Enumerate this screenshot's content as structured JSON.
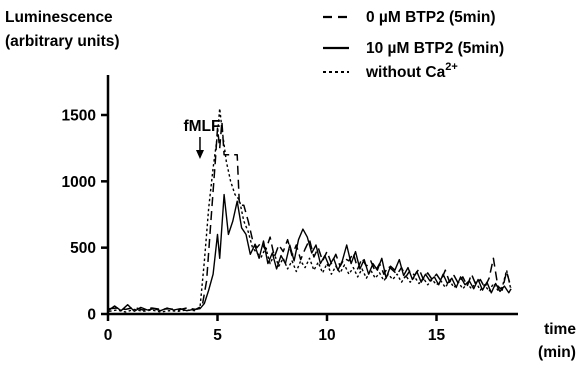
{
  "chart_data": {
    "type": "line",
    "ylabel_line1": "Luminescence",
    "ylabel_line2": "(arbitrary units)",
    "xlabel_line1": "time",
    "xlabel_line2": "(min)",
    "xlim": [
      0,
      19
    ],
    "ylim": [
      0,
      1700
    ],
    "xticks": [
      0,
      5,
      10,
      15
    ],
    "xtick_labels": [
      "0",
      "5",
      "10",
      "15"
    ],
    "yticks": [
      0,
      500,
      1000,
      1500
    ],
    "ytick_labels": [
      "0",
      "500",
      "1000",
      "1500"
    ],
    "annotation": {
      "text": "fMLF",
      "x": 4.2
    },
    "legend": {
      "position": "top-right",
      "entries": [
        {
          "style": "dashed",
          "text": "0 µM BTP2 (5min)"
        },
        {
          "style": "solid",
          "text": "10 µM BTP2 (5min)"
        },
        {
          "style": "dotted",
          "text_main": "without Ca",
          "text_sup": "2+"
        }
      ]
    },
    "series": [
      {
        "style": "dashed",
        "points": [
          [
            0.05,
            40
          ],
          [
            0.4,
            45
          ],
          [
            0.8,
            35
          ],
          [
            1.2,
            50
          ],
          [
            1.6,
            30
          ],
          [
            2.0,
            45
          ],
          [
            2.4,
            35
          ],
          [
            2.8,
            40
          ],
          [
            3.2,
            30
          ],
          [
            3.6,
            45
          ],
          [
            4.0,
            35
          ],
          [
            4.3,
            60
          ],
          [
            4.5,
            250
          ],
          [
            4.7,
            700
          ],
          [
            4.9,
            1150
          ],
          [
            5.0,
            1400
          ],
          [
            5.1,
            1250
          ],
          [
            5.2,
            1450
          ],
          [
            5.3,
            1200
          ],
          [
            5.5,
            1200
          ],
          [
            5.7,
            1200
          ],
          [
            5.9,
            1200
          ],
          [
            6.0,
            820
          ],
          [
            6.2,
            820
          ],
          [
            6.4,
            700
          ],
          [
            6.6,
            560
          ],
          [
            6.8,
            500
          ],
          [
            7.0,
            540
          ],
          [
            7.2,
            480
          ],
          [
            7.4,
            580
          ],
          [
            7.6,
            430
          ],
          [
            7.8,
            520
          ],
          [
            8.0,
            470
          ],
          [
            8.2,
            560
          ],
          [
            8.4,
            440
          ],
          [
            8.6,
            520
          ],
          [
            8.8,
            410
          ],
          [
            9.0,
            490
          ],
          [
            9.2,
            560
          ],
          [
            9.4,
            430
          ],
          [
            9.6,
            500
          ],
          [
            9.8,
            400
          ],
          [
            10.0,
            470
          ],
          [
            10.2,
            380
          ],
          [
            10.4,
            450
          ],
          [
            10.6,
            360
          ],
          [
            10.8,
            420
          ],
          [
            11.0,
            400
          ],
          [
            11.2,
            460
          ],
          [
            11.4,
            340
          ],
          [
            11.6,
            420
          ],
          [
            11.8,
            360
          ],
          [
            12.0,
            400
          ],
          [
            12.2,
            320
          ],
          [
            12.4,
            380
          ],
          [
            12.6,
            300
          ],
          [
            12.8,
            360
          ],
          [
            13.0,
            330
          ],
          [
            13.2,
            300
          ],
          [
            13.4,
            350
          ],
          [
            13.6,
            280
          ],
          [
            13.8,
            330
          ],
          [
            14.0,
            290
          ],
          [
            14.2,
            340
          ],
          [
            14.4,
            260
          ],
          [
            14.6,
            310
          ],
          [
            14.8,
            260
          ],
          [
            15.0,
            300
          ],
          [
            15.2,
            250
          ],
          [
            15.4,
            330
          ],
          [
            15.6,
            240
          ],
          [
            15.8,
            290
          ],
          [
            16.0,
            230
          ],
          [
            16.2,
            280
          ],
          [
            16.4,
            210
          ],
          [
            16.6,
            300
          ],
          [
            16.8,
            220
          ],
          [
            17.0,
            260
          ],
          [
            17.2,
            200
          ],
          [
            17.4,
            270
          ],
          [
            17.6,
            420
          ],
          [
            17.8,
            210
          ],
          [
            18.0,
            180
          ],
          [
            18.2,
            320
          ],
          [
            18.4,
            200
          ]
        ]
      },
      {
        "style": "solid",
        "points": [
          [
            0.05,
            30
          ],
          [
            0.3,
            60
          ],
          [
            0.6,
            25
          ],
          [
            0.9,
            70
          ],
          [
            1.2,
            20
          ],
          [
            1.5,
            50
          ],
          [
            1.8,
            30
          ],
          [
            2.1,
            40
          ],
          [
            2.4,
            25
          ],
          [
            2.7,
            45
          ],
          [
            3.0,
            30
          ],
          [
            3.3,
            40
          ],
          [
            3.6,
            25
          ],
          [
            3.9,
            35
          ],
          [
            4.2,
            40
          ],
          [
            4.4,
            80
          ],
          [
            4.6,
            180
          ],
          [
            4.8,
            300
          ],
          [
            5.0,
            600
          ],
          [
            5.1,
            420
          ],
          [
            5.3,
            900
          ],
          [
            5.5,
            600
          ],
          [
            5.7,
            700
          ],
          [
            5.9,
            850
          ],
          [
            6.1,
            650
          ],
          [
            6.3,
            600
          ],
          [
            6.5,
            450
          ],
          [
            6.7,
            520
          ],
          [
            6.9,
            420
          ],
          [
            7.1,
            550
          ],
          [
            7.3,
            380
          ],
          [
            7.5,
            460
          ],
          [
            7.7,
            340
          ],
          [
            7.9,
            440
          ],
          [
            8.1,
            380
          ],
          [
            8.3,
            520
          ],
          [
            8.5,
            400
          ],
          [
            8.7,
            560
          ],
          [
            8.9,
            640
          ],
          [
            9.1,
            580
          ],
          [
            9.3,
            460
          ],
          [
            9.5,
            520
          ],
          [
            9.7,
            380
          ],
          [
            9.9,
            440
          ],
          [
            10.1,
            360
          ],
          [
            10.3,
            420
          ],
          [
            10.5,
            330
          ],
          [
            10.7,
            400
          ],
          [
            10.9,
            520
          ],
          [
            11.1,
            380
          ],
          [
            11.3,
            470
          ],
          [
            11.5,
            340
          ],
          [
            11.7,
            410
          ],
          [
            11.9,
            300
          ],
          [
            12.1,
            380
          ],
          [
            12.3,
            330
          ],
          [
            12.5,
            420
          ],
          [
            12.7,
            270
          ],
          [
            12.9,
            360
          ],
          [
            13.1,
            330
          ],
          [
            13.3,
            410
          ],
          [
            13.5,
            290
          ],
          [
            13.7,
            350
          ],
          [
            13.9,
            260
          ],
          [
            14.1,
            320
          ],
          [
            14.3,
            240
          ],
          [
            14.5,
            300
          ],
          [
            14.7,
            250
          ],
          [
            14.9,
            280
          ],
          [
            15.1,
            220
          ],
          [
            15.3,
            300
          ],
          [
            15.5,
            230
          ],
          [
            15.7,
            270
          ],
          [
            15.9,
            200
          ],
          [
            16.1,
            280
          ],
          [
            16.3,
            220
          ],
          [
            16.5,
            250
          ],
          [
            16.7,
            190
          ],
          [
            16.9,
            260
          ],
          [
            17.1,
            180
          ],
          [
            17.3,
            240
          ],
          [
            17.5,
            160
          ],
          [
            17.7,
            230
          ],
          [
            17.9,
            170
          ],
          [
            18.1,
            210
          ],
          [
            18.3,
            160
          ],
          [
            18.4,
            190
          ]
        ]
      },
      {
        "style": "dotted",
        "points": [
          [
            0.05,
            20
          ],
          [
            0.4,
            30
          ],
          [
            0.8,
            15
          ],
          [
            1.2,
            35
          ],
          [
            1.6,
            20
          ],
          [
            2.0,
            30
          ],
          [
            2.4,
            15
          ],
          [
            2.8,
            25
          ],
          [
            3.2,
            20
          ],
          [
            3.6,
            30
          ],
          [
            4.0,
            25
          ],
          [
            4.2,
            50
          ],
          [
            4.4,
            400
          ],
          [
            4.6,
            800
          ],
          [
            4.8,
            1100
          ],
          [
            5.0,
            1350
          ],
          [
            5.1,
            1550
          ],
          [
            5.2,
            1400
          ],
          [
            5.4,
            1150
          ],
          [
            5.6,
            1000
          ],
          [
            5.8,
            900
          ],
          [
            6.0,
            860
          ],
          [
            6.2,
            700
          ],
          [
            6.4,
            620
          ],
          [
            6.6,
            500
          ],
          [
            6.8,
            460
          ],
          [
            7.0,
            430
          ],
          [
            7.2,
            500
          ],
          [
            7.4,
            380
          ],
          [
            7.6,
            450
          ],
          [
            7.8,
            360
          ],
          [
            8.0,
            420
          ],
          [
            8.2,
            340
          ],
          [
            8.4,
            400
          ],
          [
            8.6,
            320
          ],
          [
            8.8,
            400
          ],
          [
            9.0,
            350
          ],
          [
            9.2,
            420
          ],
          [
            9.4,
            330
          ],
          [
            9.6,
            390
          ],
          [
            9.8,
            310
          ],
          [
            10.0,
            380
          ],
          [
            10.2,
            300
          ],
          [
            10.4,
            360
          ],
          [
            10.6,
            310
          ],
          [
            10.8,
            370
          ],
          [
            11.0,
            300
          ],
          [
            11.2,
            350
          ],
          [
            11.4,
            280
          ],
          [
            11.6,
            340
          ],
          [
            11.8,
            270
          ],
          [
            12.0,
            330
          ],
          [
            12.2,
            270
          ],
          [
            12.4,
            310
          ],
          [
            12.6,
            250
          ],
          [
            12.8,
            300
          ],
          [
            13.0,
            260
          ],
          [
            13.2,
            300
          ],
          [
            13.4,
            240
          ],
          [
            13.6,
            290
          ],
          [
            13.8,
            240
          ],
          [
            14.0,
            280
          ],
          [
            14.2,
            230
          ],
          [
            14.4,
            270
          ],
          [
            14.6,
            220
          ],
          [
            14.8,
            260
          ],
          [
            15.0,
            220
          ],
          [
            15.2,
            250
          ],
          [
            15.4,
            200
          ],
          [
            15.6,
            250
          ],
          [
            15.8,
            200
          ],
          [
            16.0,
            240
          ],
          [
            16.2,
            190
          ],
          [
            16.4,
            230
          ],
          [
            16.6,
            190
          ],
          [
            16.8,
            240
          ],
          [
            17.0,
            180
          ],
          [
            17.2,
            220
          ],
          [
            17.4,
            170
          ],
          [
            17.6,
            230
          ],
          [
            17.8,
            180
          ],
          [
            18.0,
            200
          ],
          [
            18.2,
            330
          ],
          [
            18.4,
            180
          ]
        ]
      }
    ]
  }
}
